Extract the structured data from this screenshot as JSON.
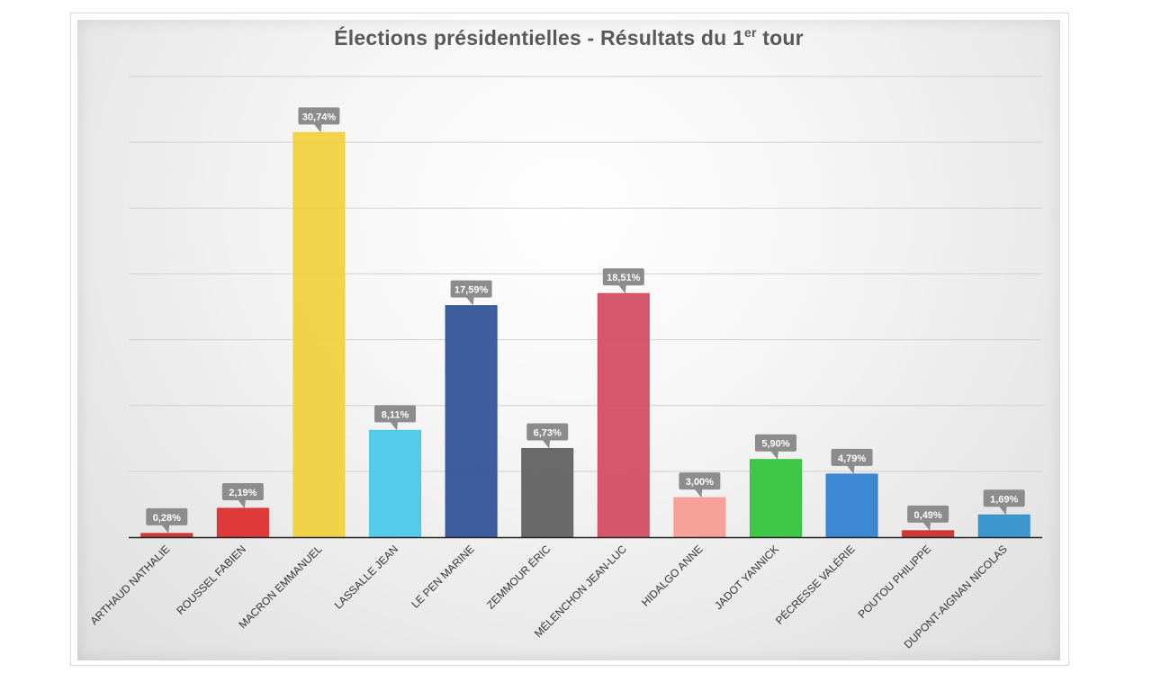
{
  "chart_data": {
    "type": "bar",
    "title_main": "Élections présidentielles - Résultats du 1",
    "title_sup": "er",
    "title_end": " tour",
    "categories": [
      "ARTHAUD NATHALIE",
      "ROUSSEL FABIEN",
      "MACRON EMMANUEL",
      "LASSALLE JEAN",
      "LE PEN MARINE",
      "ZEMMOUR ÉRIC",
      "MÉLENCHON JEAN-LUC",
      "HIDALGO ANNE",
      "JADOT YANNICK",
      "PÉCRESSE VALÉRIE",
      "POUTOU PHILIPPE",
      "DUPONT-AIGNAN NICOLAS"
    ],
    "values": [
      0.28,
      2.19,
      30.74,
      8.11,
      17.59,
      6.73,
      18.51,
      3.0,
      5.9,
      4.79,
      0.49,
      1.69
    ],
    "value_labels": [
      "0,28%",
      "2,19%",
      "30,74%",
      "8,11%",
      "17,59%",
      "6,73%",
      "18,51%",
      "3,00%",
      "5,90%",
      "4,79%",
      "0,49%",
      "1,69%"
    ],
    "colors": [
      "#c8302e",
      "#dc2a2a",
      "#f2cf3a",
      "#46c8e8",
      "#2e5095",
      "#5e5e5e",
      "#d24a60",
      "#f89a94",
      "#2fc237",
      "#2e7fd0",
      "#cc2b2b",
      "#2f90cc"
    ],
    "ylim": [
      0,
      35
    ],
    "grid": true,
    "legend": "none",
    "xlabel": "",
    "ylabel": ""
  }
}
